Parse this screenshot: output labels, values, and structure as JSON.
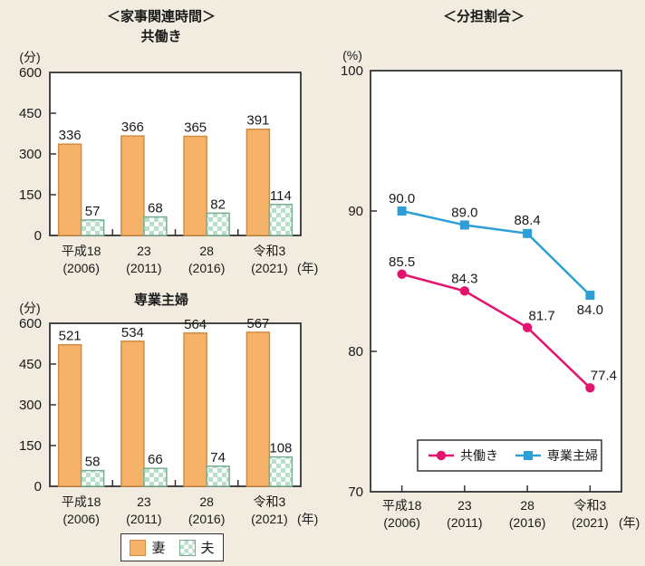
{
  "page": {
    "left_section_title": "＜家事関連時間＞"
  },
  "colors": {
    "background": "#f1ecdf",
    "plot_background": "#ffffff",
    "axis": "#333333",
    "text": "#1a1a1a",
    "wife_fill": "#f7b269",
    "wife_stroke": "#cf8c44",
    "husband_checker": "#b7dfc9",
    "husband_stroke": "#79ad92",
    "dual_income": "#e3146d",
    "housewife": "#2e9fd6"
  },
  "chart_data": [
    {
      "id": "bar-dual-income",
      "type": "bar",
      "title": "共働き",
      "y_unit": "(分)",
      "x_unit": "(年)",
      "ylim": [
        0,
        600
      ],
      "yticks": [
        0,
        150,
        300,
        450,
        600
      ],
      "grid": false,
      "categories": [
        {
          "era": "平成18",
          "year": "(2006)"
        },
        {
          "era": "23",
          "year": "(2011)"
        },
        {
          "era": "28",
          "year": "(2016)"
        },
        {
          "era": "令和3",
          "year": "(2021)"
        }
      ],
      "series": [
        {
          "name": "妻",
          "role": "wife",
          "values": [
            336,
            366,
            365,
            391
          ],
          "labels": [
            "336",
            "366",
            "365",
            "391"
          ]
        },
        {
          "name": "夫",
          "role": "husband",
          "values": [
            57,
            68,
            82,
            114
          ],
          "labels": [
            "57",
            "68",
            "82",
            "114"
          ]
        }
      ]
    },
    {
      "id": "bar-housewife",
      "type": "bar",
      "title": "専業主婦",
      "y_unit": "(分)",
      "x_unit": "(年)",
      "ylim": [
        0,
        600
      ],
      "yticks": [
        0,
        150,
        300,
        450,
        600
      ],
      "grid": false,
      "categories": [
        {
          "era": "平成18",
          "year": "(2006)"
        },
        {
          "era": "23",
          "year": "(2011)"
        },
        {
          "era": "28",
          "year": "(2016)"
        },
        {
          "era": "令和3",
          "year": "(2021)"
        }
      ],
      "series": [
        {
          "name": "妻",
          "role": "wife",
          "values": [
            521,
            534,
            564,
            567
          ],
          "labels": [
            "521",
            "534",
            "564",
            "567"
          ]
        },
        {
          "name": "夫",
          "role": "husband",
          "values": [
            58,
            66,
            74,
            108
          ],
          "labels": [
            "58",
            "66",
            "74",
            "108"
          ]
        }
      ]
    },
    {
      "id": "line-share-ratio",
      "type": "line",
      "title": "＜分担割合＞",
      "y_unit": "(%)",
      "x_unit": "(年)",
      "ylim": [
        70,
        100
      ],
      "yticks": [
        70,
        80,
        90,
        100
      ],
      "grid": false,
      "legend_position": "inside-bottom",
      "categories": [
        {
          "era": "平成18",
          "year": "(2006)"
        },
        {
          "era": "23",
          "year": "(2011)"
        },
        {
          "era": "28",
          "year": "(2016)"
        },
        {
          "era": "令和3",
          "year": "(2021)"
        }
      ],
      "series": [
        {
          "name": "共働き",
          "role": "dual_income",
          "marker": "circle",
          "values": [
            85.5,
            84.3,
            81.7,
            77.4
          ],
          "labels": [
            "85.5",
            "84.3",
            "81.7",
            "77.4"
          ]
        },
        {
          "name": "専業主婦",
          "role": "housewife",
          "marker": "square",
          "values": [
            90.0,
            89.0,
            88.4,
            84.0
          ],
          "labels": [
            "90.0",
            "89.0",
            "88.4",
            "84.0"
          ]
        }
      ]
    }
  ]
}
